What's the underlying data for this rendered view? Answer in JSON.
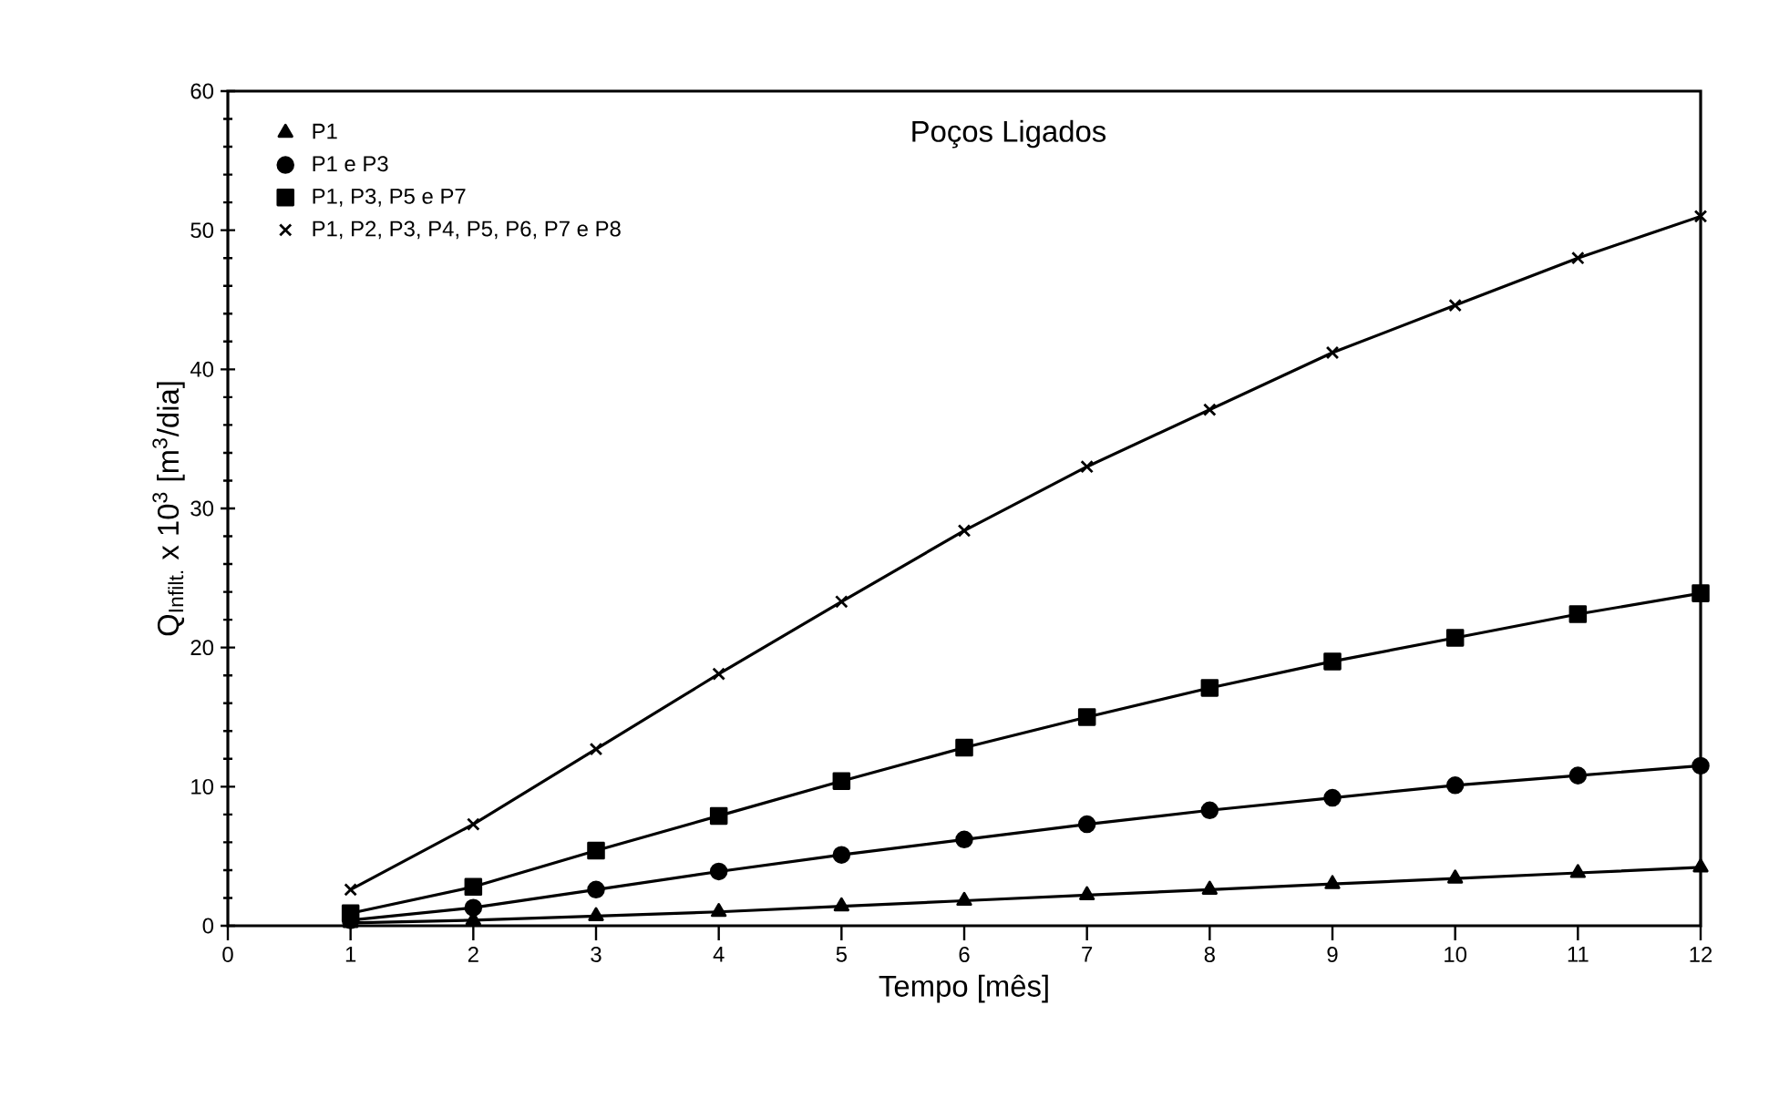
{
  "chart_data": {
    "type": "line",
    "title": "Poços Ligados",
    "xlabel": "Tempo [mês]",
    "ylabel": "Q$_{Infilt.}$ x 10$^{3}$ [m$^{3}$/dia]",
    "x": [
      1,
      2,
      3,
      4,
      5,
      6,
      7,
      8,
      9,
      10,
      11,
      12
    ],
    "xlim": [
      0,
      12
    ],
    "xticks": [
      0,
      1,
      2,
      3,
      4,
      5,
      6,
      7,
      8,
      9,
      10,
      11,
      12
    ],
    "ylim": [
      0,
      60
    ],
    "yticks": [
      0,
      10,
      20,
      30,
      40,
      50,
      60
    ],
    "legend": "top left",
    "grid": false,
    "line_style": "solid",
    "series": [
      {
        "name": "P1",
        "color": "#000000",
        "marker": "triangle",
        "values": [
          0.2,
          0.4,
          0.7,
          1.0,
          1.4,
          1.8,
          2.2,
          2.6,
          3.0,
          3.4,
          3.8,
          4.2
        ]
      },
      {
        "name": "P1 e P3",
        "color": "#000000",
        "marker": "circle",
        "values": [
          0.4,
          1.3,
          2.6,
          3.9,
          5.1,
          6.2,
          7.3,
          8.3,
          9.2,
          10.1,
          10.8,
          11.5
        ]
      },
      {
        "name": "P1, P3, P5 e P7",
        "color": "#000000",
        "marker": "square",
        "values": [
          0.9,
          2.8,
          5.4,
          7.9,
          10.4,
          12.8,
          15.0,
          17.1,
          19.0,
          20.7,
          22.4,
          23.9
        ]
      },
      {
        "name": "P1, P2, P3, P4, P5, P6, P7 e P8",
        "color": "#000000",
        "marker": "cross",
        "values": [
          2.6,
          7.3,
          12.7,
          18.1,
          23.3,
          28.4,
          33.0,
          37.1,
          41.2,
          44.6,
          48.0,
          51.0
        ]
      }
    ]
  }
}
